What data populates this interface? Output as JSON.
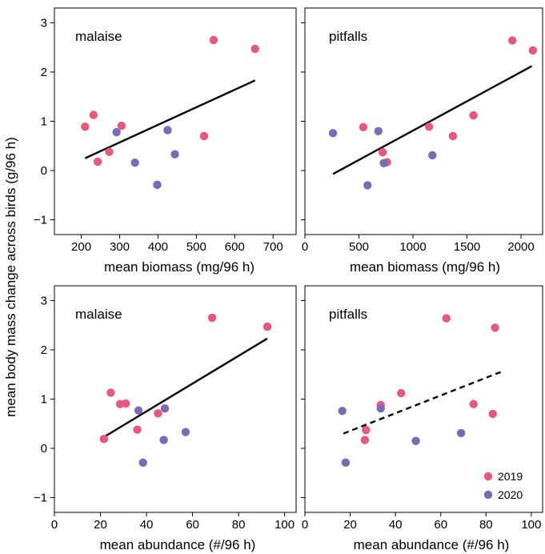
{
  "chart_data": {
    "type": "scatter",
    "ylabel": "mean body mass change across birds (g/96 h)",
    "ylim": [
      -1.3,
      3.3
    ],
    "yticks": [
      -1,
      0,
      1,
      2,
      3
    ],
    "colors": {
      "2019": "#e8587e",
      "2020": "#7b6bb6",
      "fit": "#000000"
    },
    "legend": {
      "position": "bottom-right",
      "entries": [
        {
          "label": "2019",
          "color": "#e8587e"
        },
        {
          "label": "2020",
          "color": "#7b6bb6"
        }
      ]
    },
    "panels": [
      {
        "id": "top-left",
        "title": "malaise",
        "xlabel": "mean biomass (mg/96 h)",
        "xlim": [
          130,
          760
        ],
        "xticks": [
          200,
          300,
          400,
          500,
          600,
          700
        ],
        "series": [
          {
            "name": "2019",
            "points": [
              [
                210,
                0.89
              ],
              [
                232,
                1.13
              ],
              [
                243,
                0.18
              ],
              [
                273,
                0.38
              ],
              [
                305,
                0.91
              ],
              [
                520,
                0.7
              ],
              [
                545,
                2.65
              ],
              [
                653,
                2.47
              ]
            ]
          },
          {
            "name": "2020",
            "points": [
              [
                292,
                0.78
              ],
              [
                340,
                0.16
              ],
              [
                398,
                -0.29
              ],
              [
                425,
                0.82
              ],
              [
                444,
                0.33
              ]
            ]
          }
        ],
        "fit": {
          "style": "solid",
          "from": [
            210,
            0.25
          ],
          "to": [
            653,
            1.83
          ]
        }
      },
      {
        "id": "top-right",
        "title": "pitfalls",
        "xlabel": "mean biomass (mg/96 h)",
        "xlim": [
          0,
          2200
        ],
        "xticks": [
          0,
          500,
          1000,
          1500,
          2000
        ],
        "series": [
          {
            "name": "2019",
            "points": [
              [
                540,
                0.88
              ],
              [
                720,
                0.37
              ],
              [
                760,
                0.17
              ],
              [
                1150,
                0.89
              ],
              [
                1370,
                0.7
              ],
              [
                1560,
                1.12
              ],
              [
                1920,
                2.64
              ],
              [
                2110,
                2.44
              ]
            ]
          },
          {
            "name": "2020",
            "points": [
              [
                260,
                0.76
              ],
              [
                580,
                -0.3
              ],
              [
                680,
                0.8
              ],
              [
                730,
                0.15
              ],
              [
                1180,
                0.31
              ]
            ]
          }
        ],
        "fit": {
          "style": "solid",
          "from": [
            260,
            -0.07
          ],
          "to": [
            2100,
            2.12
          ]
        }
      },
      {
        "id": "bottom-left",
        "title": "malaise",
        "xlabel": "mean abundance (#/96 h)",
        "xlim": [
          0,
          105
        ],
        "xticks": [
          0,
          20,
          40,
          60,
          80,
          100
        ],
        "series": [
          {
            "name": "2019",
            "points": [
              [
                21.5,
                0.19
              ],
              [
                24.5,
                1.13
              ],
              [
                28.5,
                0.9
              ],
              [
                31,
                0.91
              ],
              [
                36,
                0.38
              ],
              [
                45,
                0.71
              ],
              [
                68.5,
                2.65
              ],
              [
                92.5,
                2.47
              ]
            ]
          },
          {
            "name": "2020",
            "points": [
              [
                36.5,
                0.77
              ],
              [
                38.5,
                -0.29
              ],
              [
                47.5,
                0.17
              ],
              [
                48,
                0.81
              ],
              [
                57,
                0.33
              ]
            ]
          }
        ],
        "fit": {
          "style": "solid",
          "from": [
            21.5,
            0.23
          ],
          "to": [
            92.5,
            2.23
          ]
        }
      },
      {
        "id": "bottom-right",
        "title": "pitfalls",
        "xlabel": "mean abundance (#/96 h)",
        "xlim": [
          0,
          105
        ],
        "xticks": [
          0,
          20,
          40,
          60,
          80,
          100
        ],
        "series": [
          {
            "name": "2019",
            "points": [
              [
                26.5,
                0.17
              ],
              [
                27,
                0.37
              ],
              [
                33.5,
                0.88
              ],
              [
                42.5,
                1.12
              ],
              [
                62.5,
                2.64
              ],
              [
                74.5,
                0.9
              ],
              [
                83,
                0.7
              ],
              [
                84,
                2.45
              ]
            ]
          },
          {
            "name": "2020",
            "points": [
              [
                16.5,
                0.76
              ],
              [
                18,
                -0.29
              ],
              [
                33.5,
                0.81
              ],
              [
                49,
                0.15
              ],
              [
                69,
                0.31
              ]
            ]
          }
        ],
        "fit": {
          "style": "dashed",
          "from": [
            17,
            0.3
          ],
          "to": [
            86.5,
            1.55
          ]
        }
      }
    ]
  }
}
